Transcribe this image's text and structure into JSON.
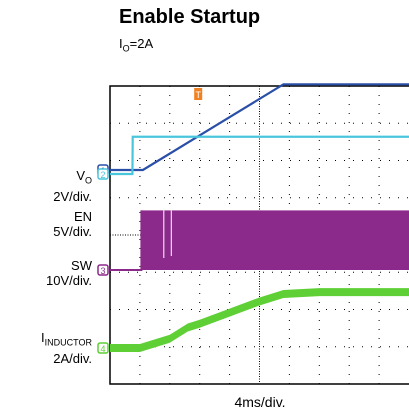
{
  "chart_data": {
    "type": "line",
    "title": "Enable Startup",
    "subtitle": {
      "main": "I",
      "sub": "O",
      "rest": "=2A"
    },
    "xlabel": "4ms/div.",
    "x_divisions": 10,
    "y_divisions": 8,
    "grid": true,
    "trigger_marker": "T",
    "x_unit": "div",
    "series": [
      {
        "name": "V_O",
        "label_main": "V",
        "label_sub": "O",
        "scale": "2V/div.",
        "channel": "1",
        "color": "#2a4fa8",
        "x": [
          0,
          1.1,
          5.8,
          10
        ],
        "y": [
          0,
          0,
          2.3,
          2.3
        ]
      },
      {
        "name": "EN",
        "label_main": "EN",
        "label_sub": "",
        "scale": "5V/div.",
        "channel": "2",
        "color": "#49c6dc",
        "x": [
          0,
          0.75,
          0.76,
          10
        ],
        "y": [
          0,
          0,
          1.0,
          1.0
        ]
      },
      {
        "name": "SW",
        "label_main": "SW",
        "label_sub": "",
        "scale": "10V/div.",
        "channel": "3",
        "color": "#8c2a8c",
        "x": [
          0,
          1.05,
          1.06,
          10
        ],
        "y": [
          0,
          0,
          1.6,
          1.6
        ]
      },
      {
        "name": "I_INDUCTOR",
        "label_main": "I",
        "label_sub": "INDUCTOR",
        "scale": "2A/div.",
        "channel": "4",
        "color": "#5fcf36",
        "x": [
          0,
          1.0,
          2.0,
          2.6,
          3.0,
          4.0,
          5.0,
          5.8,
          7.0,
          10
        ],
        "y": [
          0,
          0,
          0.25,
          0.55,
          0.65,
          0.95,
          1.25,
          1.45,
          1.5,
          1.5
        ]
      }
    ]
  }
}
